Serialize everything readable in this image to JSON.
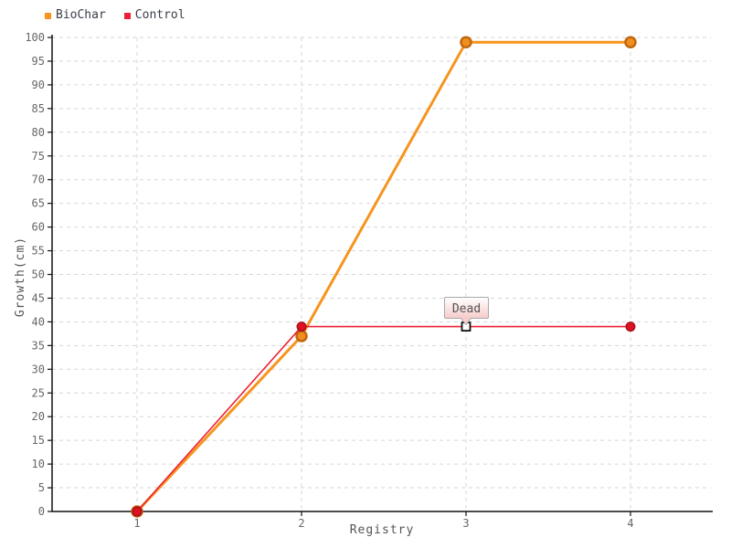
{
  "chart_data": {
    "type": "line",
    "title": "",
    "xlabel": "Registry",
    "ylabel": "Growth(cm)",
    "x": [
      1,
      2,
      3,
      4
    ],
    "yticks": [
      0,
      5,
      10,
      15,
      20,
      25,
      30,
      35,
      40,
      45,
      50,
      55,
      60,
      65,
      70,
      75,
      80,
      85,
      90,
      95,
      100
    ],
    "ylim": [
      0,
      100
    ],
    "grid": true,
    "legend_position": "top-left",
    "series": [
      {
        "name": "BioChar",
        "values": [
          0,
          37,
          99,
          99
        ],
        "line_color": "#F7941E",
        "line_width": 3,
        "marker": "circle",
        "marker_r": 5.5,
        "marker_ring": 2.5,
        "marker_fill": "#EE8F1F",
        "marker_stroke": "#C2660C"
      },
      {
        "name": "Control",
        "values": [
          0,
          39,
          39,
          39
        ],
        "line_color": "#EC2034",
        "line_width": 1.6,
        "marker": "circle",
        "marker_r": 4.8,
        "marker_ring": 1.4,
        "marker_fill": "#DD1322",
        "marker_stroke": "#A80D18"
      }
    ],
    "annotation": {
      "text": "Dead",
      "series": "Control",
      "x": 3,
      "y": 39,
      "marker": "white-square",
      "box_bg_top": "#FFFFFF",
      "box_bg_bottom": "#F6CBCB",
      "box_border": "#A9A9A9"
    },
    "colors": {
      "background": "#FFFFFF",
      "axis": "#111111",
      "grid": "#D6D6D6",
      "tick_text": "#666666",
      "axis_title": "#555555",
      "legend_text": "#3A3E48"
    }
  }
}
